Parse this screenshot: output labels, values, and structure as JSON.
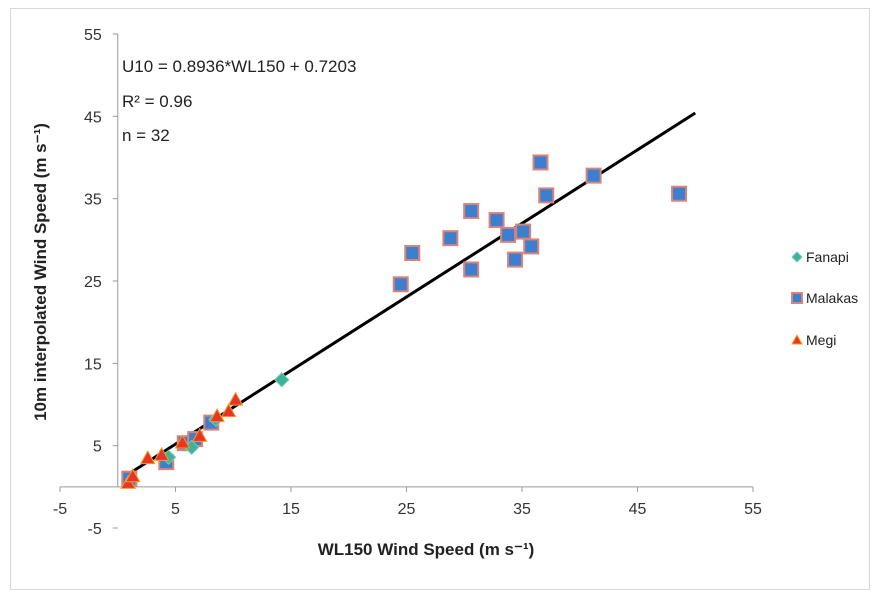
{
  "chart_data": {
    "type": "scatter",
    "title": "",
    "xlabel": "WL150 Wind Speed (m s⁻¹)",
    "ylabel": "10m interpolated Wind Speed (m s⁻¹)",
    "xlim": [
      -5,
      55
    ],
    "ylim": [
      -5,
      55
    ],
    "xticks": [
      "-5",
      "5",
      "15",
      "25",
      "35",
      "45",
      "55"
    ],
    "yticks": [
      "-5",
      "5",
      "15",
      "25",
      "35",
      "45",
      "55"
    ],
    "grid": false,
    "legend_position": "right",
    "annotations": {
      "equation": "U10 = 0.8936*WL150 + 0.7203",
      "r2": "R² = 0.96",
      "n": "n = 32"
    },
    "fit_line": {
      "slope": 0.8936,
      "intercept": 0.7203,
      "x_range": [
        0.5,
        50
      ]
    },
    "series": [
      {
        "name": "Fanapi",
        "marker": "diamond",
        "color": "#3cb39a",
        "points": [
          [
            14.2,
            13
          ],
          [
            4.4,
            3.6
          ],
          [
            6.4,
            4.8
          ],
          [
            8.5,
            8.2
          ]
        ]
      },
      {
        "name": "Malakas",
        "marker": "square",
        "color": "#3c7fcf",
        "points": [
          [
            1,
            1
          ],
          [
            4.2,
            3
          ],
          [
            5.8,
            5.3
          ],
          [
            6.7,
            5.8
          ],
          [
            8.1,
            7.8
          ],
          [
            24.5,
            24.6
          ],
          [
            25.5,
            28.4
          ],
          [
            28.8,
            30.2
          ],
          [
            30.6,
            33.5
          ],
          [
            30.6,
            26.4
          ],
          [
            32.8,
            32.4
          ],
          [
            33.8,
            30.6
          ],
          [
            34.4,
            27.6
          ],
          [
            35.1,
            31.0
          ],
          [
            35.8,
            29.2
          ],
          [
            36.6,
            39.4
          ],
          [
            37.1,
            35.4
          ],
          [
            41.2,
            37.8
          ],
          [
            48.6,
            35.6
          ]
        ]
      },
      {
        "name": "Megi",
        "marker": "triangle",
        "color": "#e8352a",
        "points": [
          [
            0.9,
            0.5
          ],
          [
            2.6,
            3.5
          ],
          [
            5.6,
            5.4
          ],
          [
            7.1,
            6.2
          ],
          [
            9.6,
            9.2
          ],
          [
            10.2,
            10.6
          ],
          [
            3.8,
            3.9
          ],
          [
            8.6,
            8.6
          ],
          [
            1.3,
            1.3
          ]
        ]
      }
    ]
  },
  "colors": {
    "fanapi": "#3cb39a",
    "malakas": "#3c7fcf",
    "megi": "#e8352a",
    "marker_outline": "#d9837a",
    "fit_line": "#000000"
  }
}
